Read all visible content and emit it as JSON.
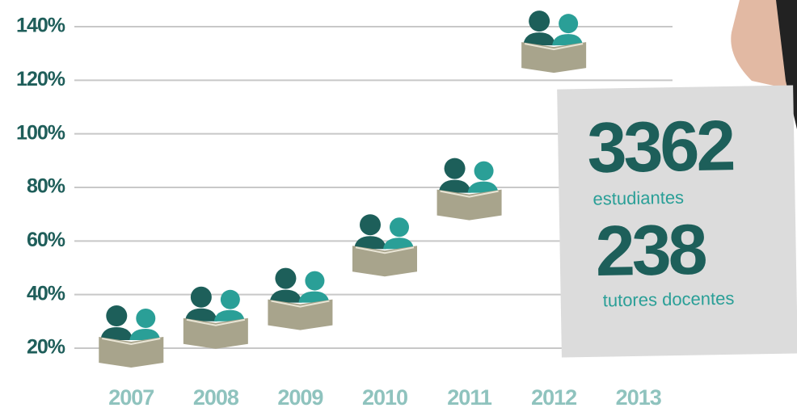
{
  "chart_data": {
    "type": "pictogram",
    "categories": [
      "2007",
      "2008",
      "2009",
      "2010",
      "2011",
      "2012",
      "2013"
    ],
    "values": [
      20,
      27,
      34,
      54,
      75,
      130,
      null
    ],
    "color": "#1d5f5a",
    "accent_color": "#2a9f97",
    "book_color": "#a8a48c",
    "ylim": [
      20,
      140
    ],
    "yticks": [
      {
        "value": 20,
        "label": "20%"
      },
      {
        "value": 40,
        "label": "40%"
      },
      {
        "value": 60,
        "label": "60%"
      },
      {
        "value": 80,
        "label": "80%"
      },
      {
        "value": 100,
        "label": "100%"
      },
      {
        "value": 120,
        "label": "120%"
      },
      {
        "value": 140,
        "label": "140%"
      }
    ],
    "grid": true,
    "callout": {
      "students": 3362,
      "students_label": "estudiantes",
      "tutors": 238,
      "tutors_label": "tutores docentes"
    }
  }
}
